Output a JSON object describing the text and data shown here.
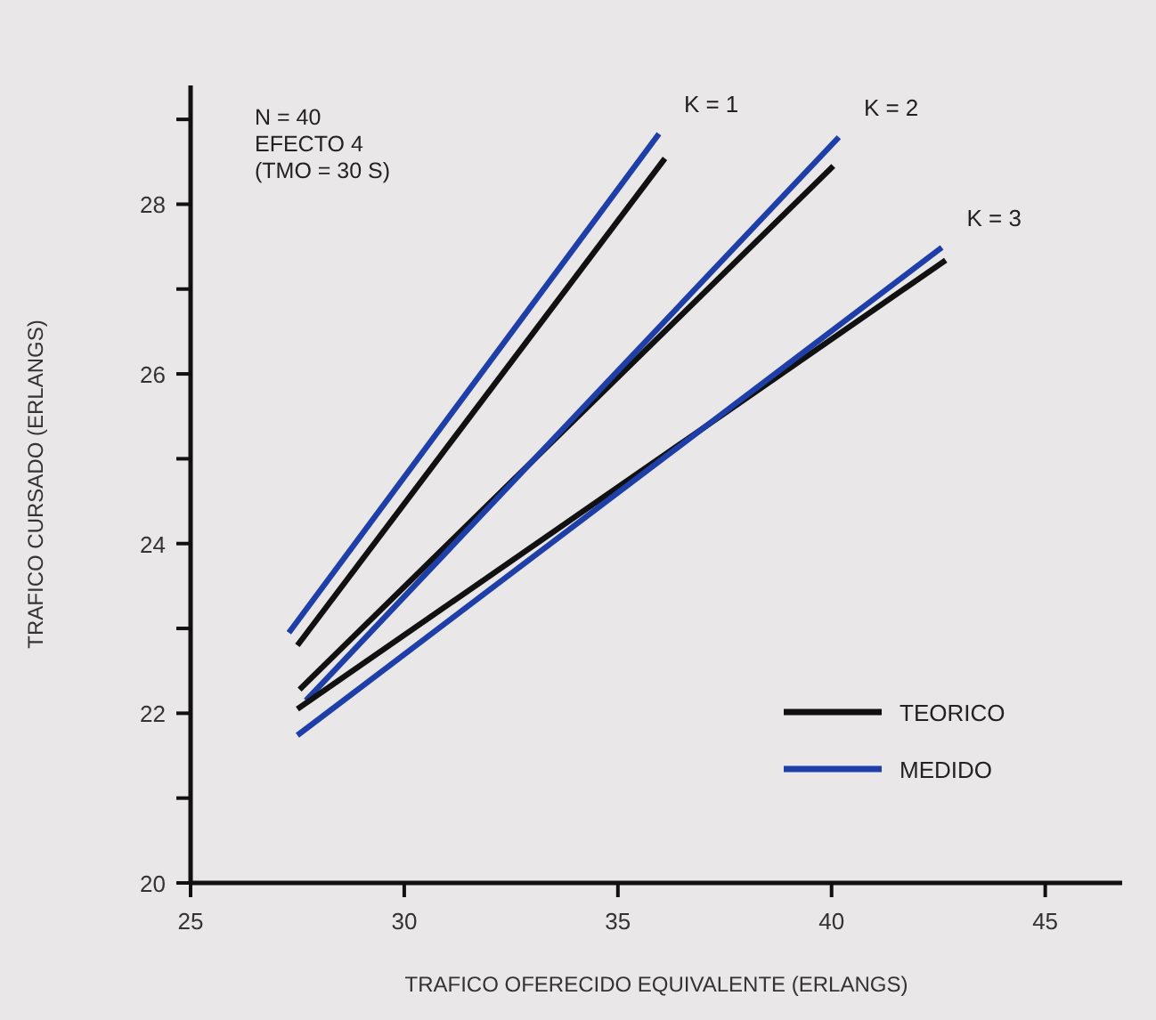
{
  "chart_data": {
    "type": "line",
    "xlabel": "TRAFICO OFERECIDO EQUIVALENTE (ERLANGS)",
    "ylabel": "TRAFICO CURSADO (ERLANGS)",
    "xlim": [
      25,
      46.8
    ],
    "ylim": [
      20,
      29.4
    ],
    "xticks": [
      25,
      30,
      35,
      40,
      45
    ],
    "yticks": [
      20,
      {
        "value": 21,
        "label": null
      },
      22,
      {
        "value": 23,
        "label": null
      },
      24,
      {
        "value": 25,
        "label": null
      },
      26,
      {
        "value": 27,
        "label": null
      },
      28,
      {
        "value": 29,
        "label": null
      }
    ],
    "grid": false,
    "legend": "bottom right",
    "marker": "none",
    "line_style": "solid",
    "series": [
      {
        "name": "TEORICO",
        "color": "#111111",
        "x": [
          27.5,
          36.1
        ],
        "values": [
          22.8,
          28.54
        ]
      },
      {
        "name": "MEDIDO",
        "color": "#1f3fa8",
        "x": [
          27.3,
          35.96
        ],
        "values": [
          22.95,
          28.83
        ]
      },
      {
        "color": "#111111",
        "x": [
          27.55,
          40.04
        ],
        "values": [
          22.28,
          28.45
        ]
      },
      {
        "color": "#1f3fa8",
        "x": [
          27.7,
          40.17
        ],
        "values": [
          22.15,
          28.79
        ]
      },
      {
        "color": "#111111",
        "x": [
          27.5,
          42.67
        ],
        "values": [
          22.05,
          27.34
        ]
      },
      {
        "color": "#1f3fa8",
        "x": [
          27.5,
          42.58
        ],
        "values": [
          21.74,
          27.49
        ]
      }
    ],
    "annotations": [
      "K = 1",
      "K = 2",
      "K = 3",
      "N = 40",
      "EFECTO 4",
      "(TMO = 30 S)"
    ]
  }
}
